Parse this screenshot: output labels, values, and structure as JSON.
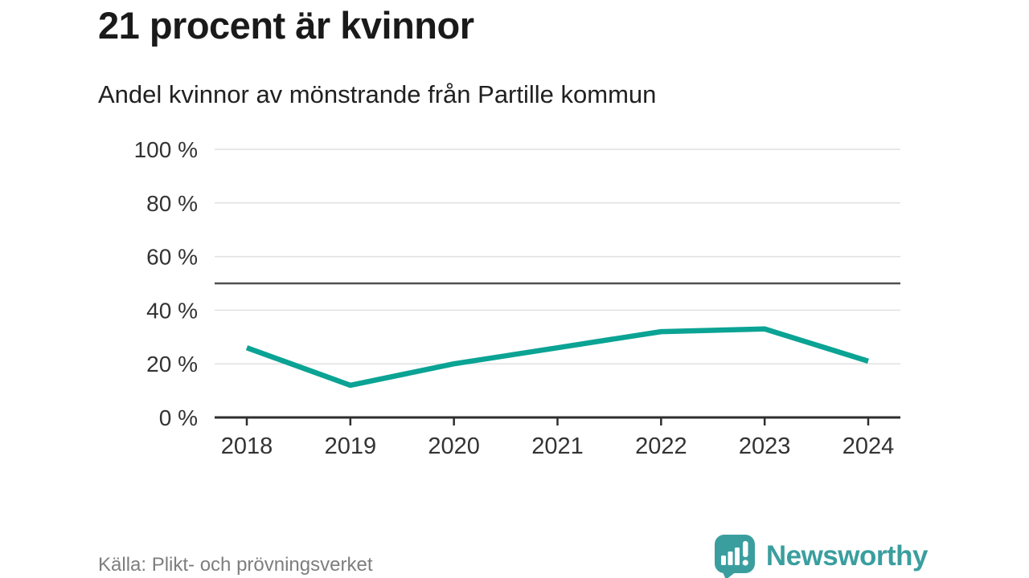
{
  "chart_data": {
    "type": "line",
    "title": "21 procent är kvinnor",
    "subtitle": "Andel kvinnor av mönstrande från Partille kommun",
    "categories": [
      "2018",
      "2019",
      "2020",
      "2021",
      "2022",
      "2023",
      "2024"
    ],
    "values": [
      26,
      12,
      20,
      26,
      32,
      33,
      21
    ],
    "series_name": "Andel kvinnor av mönstrande",
    "xlabel": "",
    "ylabel": "",
    "ylim": [
      0,
      100
    ],
    "yticks": [
      {
        "value": 0,
        "label": "0 %"
      },
      {
        "value": 20,
        "label": "20 %"
      },
      {
        "value": 40,
        "label": "40 %"
      },
      {
        "value": 60,
        "label": "60 %"
      },
      {
        "value": 80,
        "label": "80 %"
      },
      {
        "value": 100,
        "label": "100 %"
      }
    ],
    "reference_line": {
      "value": 50
    },
    "grid": true,
    "legend": false,
    "line_color": "#0aa394",
    "grid_color": "#e0e0e0",
    "reference_color": "#4f4f4f",
    "axis_color": "#2e2e2e",
    "label_color": "#333333"
  },
  "footer": {
    "source": "Källa: Plikt- och prövningsverket",
    "brand_name": "Newsworthy"
  },
  "colors": {
    "title_text": "#1a1a1a",
    "subtitle_text": "#212121",
    "source_text": "#7e7e7e",
    "brand_teal": "#3b9e9e"
  },
  "icons": {
    "logo": "newsworthy-speech-bubble-chart-icon"
  }
}
